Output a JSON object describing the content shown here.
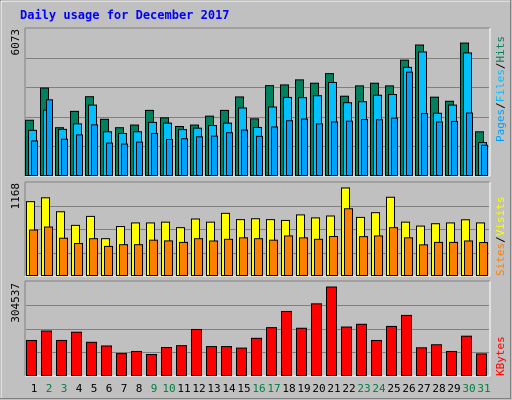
{
  "colors": {
    "background": "#C0C0C0",
    "panel": "#C0C0C0",
    "frame_dark": "#808080",
    "frame_light": "#FFFFFF",
    "title": "#0000FF",
    "hits": "#00805C",
    "files": "#00C0FF",
    "pages": "#00A0FF",
    "pages_weekend": "#0000C0",
    "visits": "#FFFF00",
    "sites": "#FF8000",
    "kbytes": "#FF0000",
    "weekday_label": "#000000",
    "weekend_label": "#008040",
    "gridline": "#808080"
  },
  "chart_data": {
    "type": "bar",
    "title": "Daily usage for December 2017",
    "categories": [
      "1",
      "2",
      "3",
      "4",
      "5",
      "6",
      "7",
      "8",
      "9",
      "10",
      "11",
      "12",
      "13",
      "14",
      "15",
      "16",
      "17",
      "18",
      "19",
      "20",
      "21",
      "22",
      "23",
      "24",
      "25",
      "26",
      "27",
      "28",
      "29",
      "30",
      "31"
    ],
    "weekend_days": [
      "2",
      "3",
      "9",
      "10",
      "16",
      "17",
      "23",
      "24",
      "30",
      "31"
    ],
    "panels": [
      {
        "name": "top",
        "ymax": 6073,
        "ymax_label": "6073",
        "legend": [
          "Pages",
          "Files",
          "Hits"
        ],
        "series": [
          {
            "name": "Hits",
            "values": [
              2340,
              3680,
              2030,
              2710,
              3320,
              2380,
              2030,
              2140,
              2750,
              2440,
              2080,
              2140,
              2510,
              2750,
              3310,
              2400,
              3780,
              3810,
              4020,
              3880,
              4280,
              3340,
              3770,
              3880,
              3770,
              4840,
              5470,
              3300,
              3130,
              5550,
              1860
            ]
          },
          {
            "name": "Files",
            "values": [
              1920,
              2760,
              1960,
              2190,
              2970,
              1860,
              1790,
              1860,
              2250,
              2220,
              1950,
              2010,
              2120,
              2220,
              2850,
              2040,
              2890,
              3290,
              3280,
              3360,
              3910,
              3070,
              3110,
              3380,
              3410,
              4540,
              5180,
              2630,
              2970,
              5140,
              1410
            ]
          },
          {
            "name": "Pages",
            "values": [
              1480,
              3190,
              1550,
              1730,
              2150,
              1390,
              1350,
              1430,
              1790,
              1540,
              1570,
              1650,
              1680,
              1820,
              1930,
              1670,
              2060,
              2320,
              2390,
              2190,
              2270,
              2300,
              2370,
              2360,
              2430,
              4340,
              2620,
              2270,
              2290,
              2640,
              1300
            ]
          }
        ]
      },
      {
        "name": "middle",
        "ymax": 1168,
        "ymax_label": "1168",
        "legend": [
          "Sites",
          "Visits"
        ],
        "series": [
          {
            "name": "Visits",
            "values": [
              950,
              999,
              822,
              649,
              763,
              480,
              634,
              680,
              680,
              690,
              620,
              730,
              690,
              802,
              722,
              733,
              722,
              712,
              782,
              744,
              768,
              1124,
              750,
              810,
              1006,
              690,
              640,
              670,
              680,
              720,
              680
            ]
          },
          {
            "name": "Sites",
            "values": [
              590,
              628,
              486,
              419,
              480,
              382,
              404,
              404,
              461,
              452,
              433,
              480,
              451,
              472,
              491,
              480,
              461,
              515,
              491,
              472,
              508,
              860,
              506,
              515,
              620,
              491,
              402,
              433,
              433,
              451,
              431
            ]
          }
        ]
      },
      {
        "name": "bottom",
        "ymax": 304537,
        "ymax_label": "304537",
        "legend": [
          "KBytes"
        ],
        "series": [
          {
            "name": "KBytes",
            "values": [
              118000,
              149000,
              118000,
              145000,
              112000,
              100000,
              75000,
              82000,
              72000,
              95000,
              101000,
              154000,
              98000,
              98000,
              93000,
              125000,
              160000,
              213000,
              158000,
              238000,
              293000,
              162000,
              171000,
              118000,
              164000,
              200000,
              94000,
              104000,
              82000,
              132000,
              74000
            ]
          }
        ]
      }
    ]
  }
}
